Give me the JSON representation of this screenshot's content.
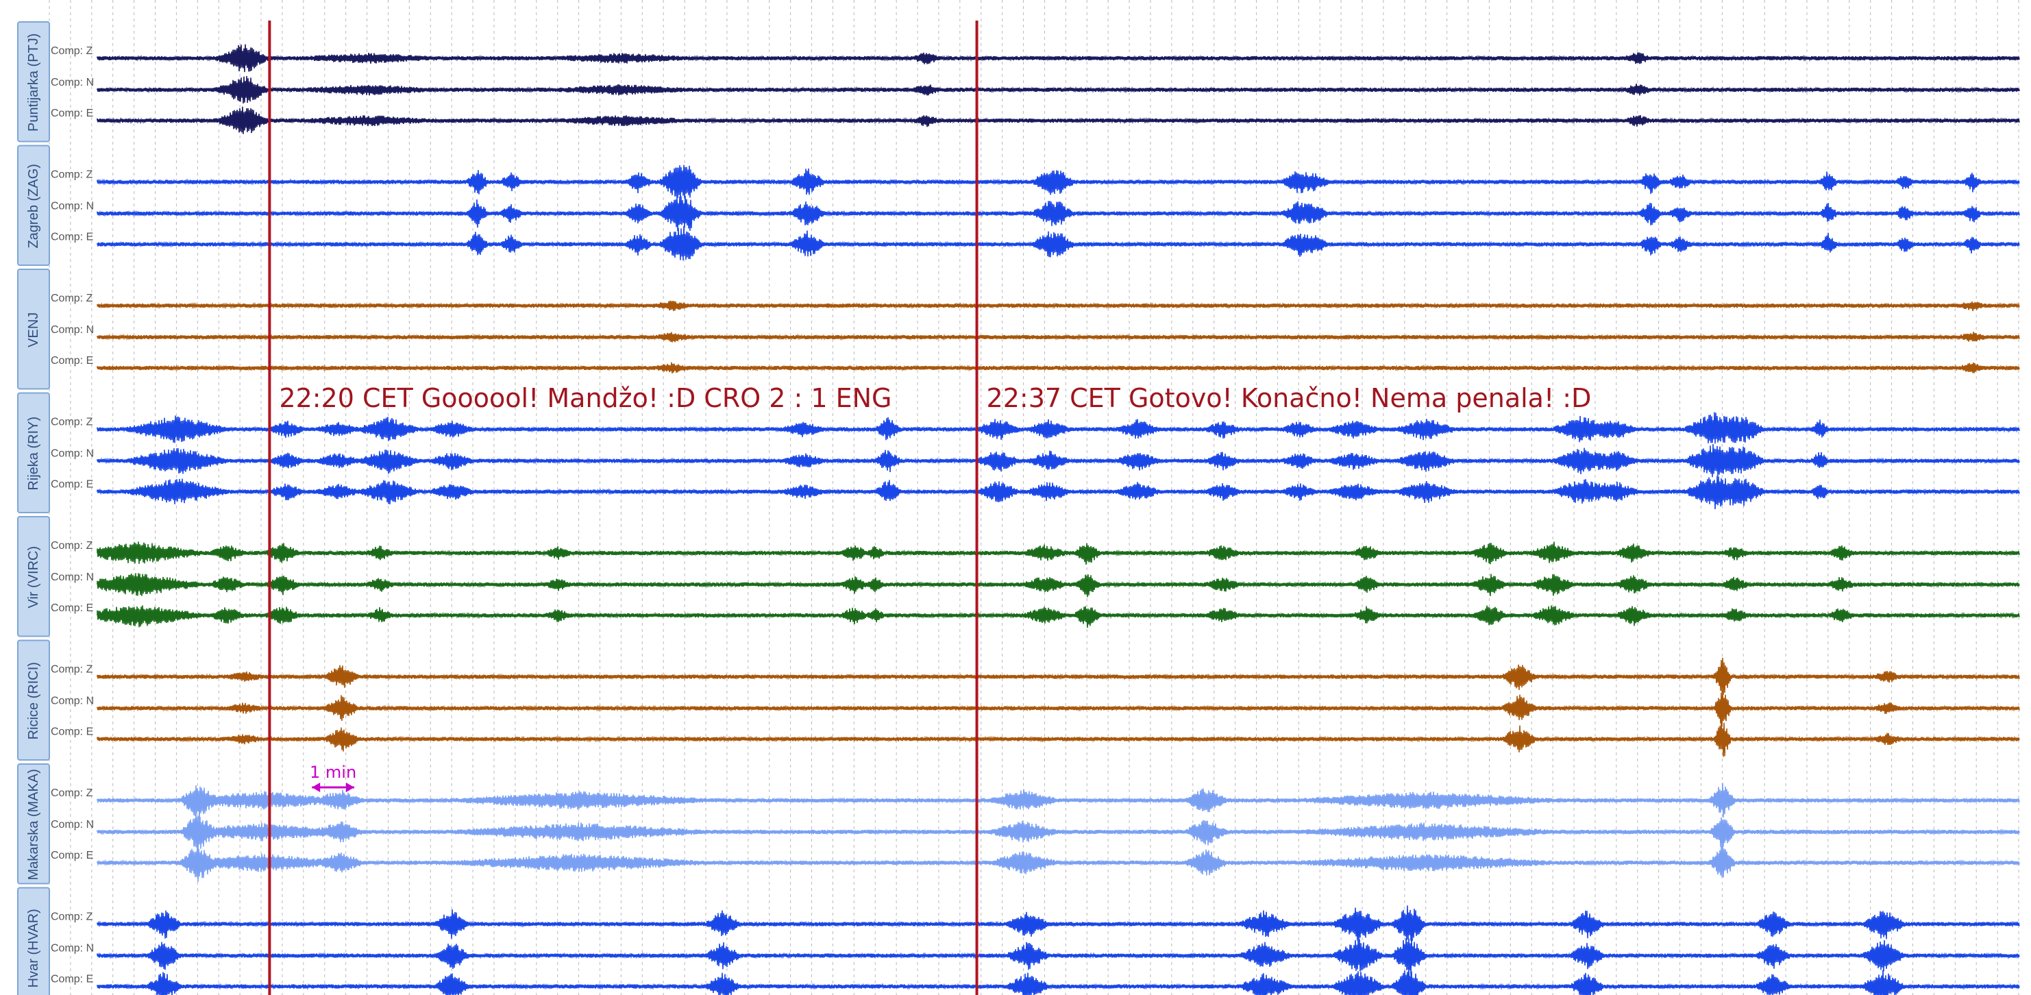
{
  "chart_data": {
    "type": "line",
    "title": "",
    "xlabel": "",
    "ylabel": "",
    "grid": true,
    "components": [
      "Comp: Z",
      "Comp: N",
      "Comp: E"
    ],
    "stations": [
      {
        "label": "Puntijarka (PTJ)",
        "color": "#1a1a5e",
        "bursts": [
          [
            4,
            0.7,
            0.6
          ],
          [
            4.2,
            0.5,
            0.5
          ],
          [
            20.2,
            0.4,
            0.3
          ],
          [
            37,
            0.4,
            0.3
          ],
          [
            7,
            0.3,
            1.5
          ],
          [
            13,
            0.3,
            1.5
          ]
        ]
      },
      {
        "label": "Zagreb (ZAG)",
        "color": "#1a47e8",
        "bursts": [
          [
            9.6,
            1.0,
            0.25
          ],
          [
            10.4,
            0.7,
            0.25
          ],
          [
            13.4,
            0.8,
            0.3
          ],
          [
            14.3,
            1.3,
            0.4
          ],
          [
            14.6,
            1.0,
            0.3
          ],
          [
            17.4,
            1.0,
            0.4
          ],
          [
            23.1,
            0.9,
            0.4
          ],
          [
            23.4,
            0.6,
            0.3
          ],
          [
            29.0,
            0.9,
            0.4
          ],
          [
            29.4,
            0.6,
            0.3
          ],
          [
            37.3,
            0.9,
            0.25
          ],
          [
            38.0,
            0.6,
            0.25
          ],
          [
            41.5,
            0.8,
            0.2
          ],
          [
            43.3,
            0.6,
            0.2
          ],
          [
            44.9,
            0.7,
            0.2
          ]
        ]
      },
      {
        "label": "VENJ",
        "color": "#a8560a",
        "bursts": [
          [
            14.2,
            0.3,
            0.4
          ],
          [
            44.9,
            0.3,
            0.3
          ]
        ]
      },
      {
        "label": "Rijeka (RIY)",
        "color": "#1a47e8",
        "bursts": [
          [
            2.5,
            1.0,
            1.2
          ],
          [
            5.1,
            0.6,
            0.4
          ],
          [
            6.3,
            0.5,
            0.5
          ],
          [
            7.5,
            0.9,
            0.7
          ],
          [
            9.0,
            0.6,
            0.5
          ],
          [
            17.3,
            0.5,
            0.5
          ],
          [
            19.3,
            0.9,
            0.3
          ],
          [
            21.9,
            0.8,
            0.5
          ],
          [
            23.1,
            0.7,
            0.5
          ],
          [
            25.2,
            0.7,
            0.5
          ],
          [
            27.2,
            0.6,
            0.4
          ],
          [
            29.0,
            0.6,
            0.4
          ],
          [
            30.3,
            0.6,
            0.6
          ],
          [
            32.0,
            0.8,
            0.7
          ],
          [
            35.7,
            1.0,
            0.7
          ],
          [
            36.5,
            0.7,
            0.5
          ],
          [
            38.8,
            1.3,
            0.7
          ],
          [
            39.5,
            1.0,
            0.5
          ],
          [
            41.3,
            0.7,
            0.2
          ]
        ]
      },
      {
        "label": "Vir (VIRC)",
        "color": "#1a6b1a",
        "bursts": [
          [
            1.6,
            0.8,
            1.5
          ],
          [
            5.0,
            0.7,
            0.4
          ],
          [
            3.7,
            0.6,
            0.4
          ],
          [
            7.3,
            0.5,
            0.3
          ],
          [
            11.5,
            0.4,
            0.3
          ],
          [
            18.5,
            0.6,
            0.3
          ],
          [
            19.0,
            0.5,
            0.2
          ],
          [
            23.0,
            0.6,
            0.5
          ],
          [
            24.0,
            0.9,
            0.3
          ],
          [
            27.2,
            0.5,
            0.4
          ],
          [
            30.6,
            0.6,
            0.3
          ],
          [
            33.5,
            0.8,
            0.4
          ],
          [
            35.0,
            0.8,
            0.5
          ],
          [
            36.9,
            0.7,
            0.4
          ],
          [
            39.3,
            0.5,
            0.3
          ],
          [
            41.8,
            0.5,
            0.3
          ]
        ]
      },
      {
        "label": "Ricice (RICI)",
        "color": "#a8560a",
        "bursts": [
          [
            6.4,
            0.9,
            0.4
          ],
          [
            4.1,
            0.3,
            0.4
          ],
          [
            34.2,
            1.0,
            0.4
          ],
          [
            39.0,
            1.6,
            0.2
          ],
          [
            42.9,
            0.4,
            0.3
          ]
        ]
      },
      {
        "label": "Makarska (MAKA)",
        "color": "#7aa0f4",
        "bursts": [
          [
            3.0,
            1.3,
            0.4
          ],
          [
            6.4,
            0.7,
            0.5
          ],
          [
            22.5,
            0.8,
            0.8
          ],
          [
            26.8,
            1.0,
            0.5
          ],
          [
            39.0,
            1.3,
            0.3
          ],
          [
            4.5,
            0.6,
            2.0
          ],
          [
            12.0,
            0.6,
            3.0
          ],
          [
            32.0,
            0.6,
            3.0
          ]
        ]
      },
      {
        "label": "Hvar (HVAR)",
        "color": "#1a47e8",
        "bursts": [
          [
            2.2,
            1.1,
            0.4
          ],
          [
            9.0,
            1.1,
            0.4
          ],
          [
            15.4,
            1.0,
            0.4
          ],
          [
            22.6,
            1.0,
            0.5
          ],
          [
            28.2,
            1.0,
            0.6
          ],
          [
            30.4,
            1.3,
            0.6
          ],
          [
            31.6,
            1.6,
            0.4
          ],
          [
            35.8,
            1.0,
            0.4
          ],
          [
            40.2,
            1.0,
            0.4
          ],
          [
            42.8,
            1.2,
            0.5
          ]
        ]
      }
    ],
    "annotations": [
      {
        "text": "22:20 CET Goooool! Mandžo! :D CRO 2 : 1 ENG",
        "minute": 4.7
      },
      {
        "text": "22:37 CET Gotovo! Konačno! Nema penala! :D",
        "minute": 21.4
      }
    ],
    "scale_bar": {
      "label": "1 min",
      "minutes": 1
    },
    "x_range_minutes": [
      -0.5,
      46.0
    ],
    "grid_step_minutes": 0.5,
    "colors": {
      "marker": "#b01520",
      "annotation": "#a0151e",
      "scale": "#c800c8",
      "tab": "#c5d9f1"
    }
  }
}
